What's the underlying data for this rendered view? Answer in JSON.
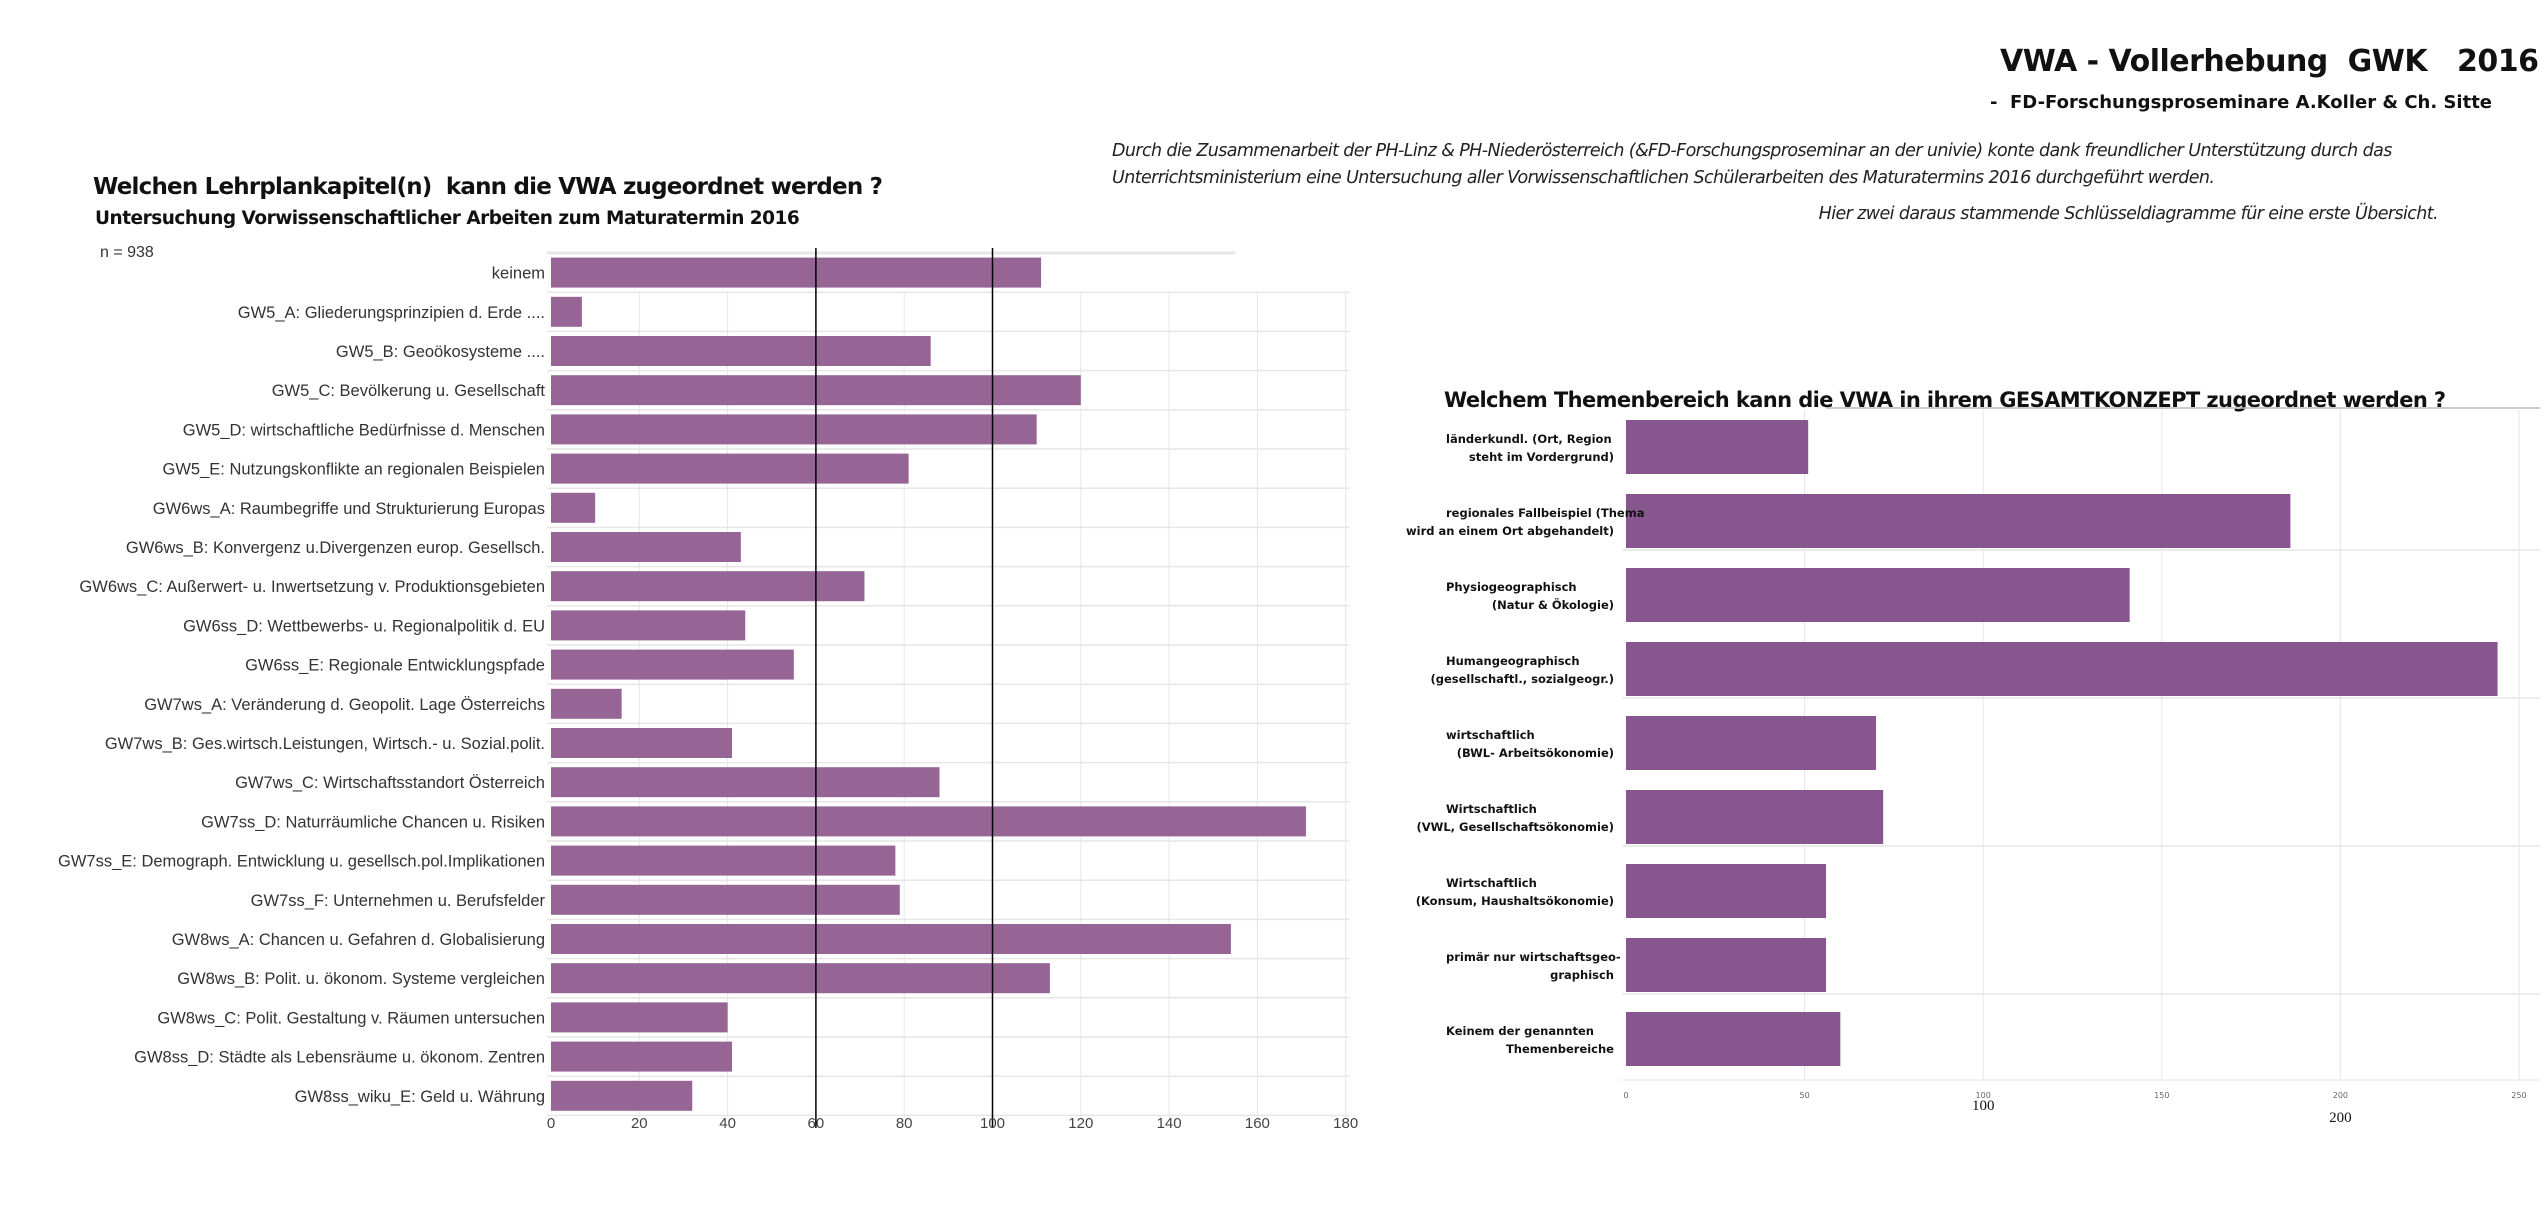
{
  "header": {
    "title": "VWA - Vollerhebung  GWK   2016",
    "subtitle": "-  FD-Forschungsproseminare A.Koller & Ch. Sitte",
    "intro_line1": "Durch die Zusammenarbeit der PH-Linz & PH-Niederösterreich (&FD-Forschungsproseminar an der univie)  konte dank freundlicher Unterstützung durch das",
    "intro_line2": "Unterrichtsministerium eine Untersuchung aller Vorwissenschaftlichen Schülerarbeiten des Maturatermins 2016 durchgeführt werden.",
    "intro_line3": "Hier zwei daraus stammende Schlüsseldiagramme für eine erste Übersicht."
  },
  "colors": {
    "left_bar": "#966596",
    "right_bar": "#87568f",
    "grid": "#e6e6e6",
    "marker_line": "#000000"
  },
  "chart_data": [
    {
      "type": "bar",
      "orientation": "horizontal",
      "title": "Welchen Lehrplankapitel(n)  kann die VWA zugeordnet werden ?",
      "subtitle": "Untersuchung Vorwissenschaftlicher Arbeiten zum Maturatermin 2016",
      "annotation": "n = 938",
      "xlabel": "",
      "ylabel": "",
      "xlim": [
        0,
        180
      ],
      "xticks": [
        0,
        20,
        40,
        60,
        80,
        100,
        120,
        140,
        160,
        180
      ],
      "xtick_labels": [
        "0",
        "20",
        "40",
        "60",
        "80",
        "100",
        "120",
        "140",
        "160",
        "180"
      ],
      "reference_lines": [
        60,
        100
      ],
      "grid": true,
      "legend": "none",
      "categories": [
        "keinem",
        "GW5_A: Gliederungsprinzipien d. Erde ....",
        "GW5_B:  Geoökosysteme ....",
        "GW5_C: Bevölkerung u. Gesellschaft",
        "GW5_D: wirtschaftliche Bedürfnisse d. Menschen",
        "GW5_E: Nutzungskonflikte an regionalen Beispielen",
        "GW6ws_A: Raumbegriffe und Strukturierung Europas",
        "GW6ws_B: Konvergenz u.Divergenzen europ. Gesellsch.",
        "GW6ws_C: Außerwert- u. Inwertsetzung v. Produktionsgebieten",
        "GW6ss_D: Wettbewerbs- u. Regionalpolitik d. EU",
        "GW6ss_E: Regionale Entwicklungspfade",
        "GW7ws_A: Veränderung d. Geopolit. Lage Österreichs",
        "GW7ws_B: Ges.wirtsch.Leistungen, Wirtsch.- u. Sozial.polit.",
        "GW7ws_C: Wirtschaftsstandort Österreich",
        "GW7ss_D: Naturräumliche Chancen u. Risiken",
        "GW7ss_E: Demograph. Entwicklung u. gesellsch.pol.Implikationen",
        "GW7ss_F: Unternehmen u. Berufsfelder",
        "GW8ws_A: Chancen u. Gefahren d. Globalisierung",
        "GW8ws_B: Polit. u. ökonom. Systeme vergleichen",
        "GW8ws_C: Polit. Gestaltung v. Räumen untersuchen",
        "GW8ss_D: Städte als Lebensräume u. ökonom. Zentren",
        "GW8ss_wiku_E: Geld u. Währung"
      ],
      "values": [
        111,
        7,
        86,
        120,
        110,
        81,
        10,
        43,
        71,
        44,
        55,
        16,
        41,
        88,
        171,
        78,
        79,
        154,
        113,
        40,
        41,
        32
      ]
    },
    {
      "type": "bar",
      "orientation": "horizontal",
      "title": "Welchem Themenbereich kann die VWA in ihrem GESAMTKONZEPT zugeordnet werden ?",
      "xlabel": "",
      "ylabel": "",
      "xlim": [
        0,
        250
      ],
      "xticks": [
        0,
        50,
        100,
        150,
        200,
        250
      ],
      "xtick_labels": [
        "0",
        "50",
        "100",
        "150",
        "200",
        "250"
      ],
      "overlay_tick_labels": [
        "100",
        "200"
      ],
      "grid": true,
      "legend": "none",
      "categories": [
        [
          "länderkundl. (Ort, Region",
          "steht im Vordergrund)"
        ],
        [
          "regionales Fallbeispiel (Thema",
          "wird an einem Ort abgehandelt)"
        ],
        [
          "Physiogeographisch",
          "(Natur & Ökologie)"
        ],
        [
          "Humangeographisch",
          "(gesellschaftl., sozialgeogr.)"
        ],
        [
          "wirtschaftlich",
          "(BWL- Arbeitsökonomie)"
        ],
        [
          "Wirtschaftlich",
          "(VWL, Gesellschaftsökonomie)"
        ],
        [
          "Wirtschaftlich",
          "(Konsum, Haushaltsökonomie)"
        ],
        [
          "primär nur wirtschaftsgeo-",
          "graphisch"
        ],
        [
          "Keinem der genannten",
          "Themenbereiche"
        ]
      ],
      "values": [
        51,
        186,
        141,
        244,
        70,
        72,
        56,
        56,
        60
      ]
    }
  ]
}
